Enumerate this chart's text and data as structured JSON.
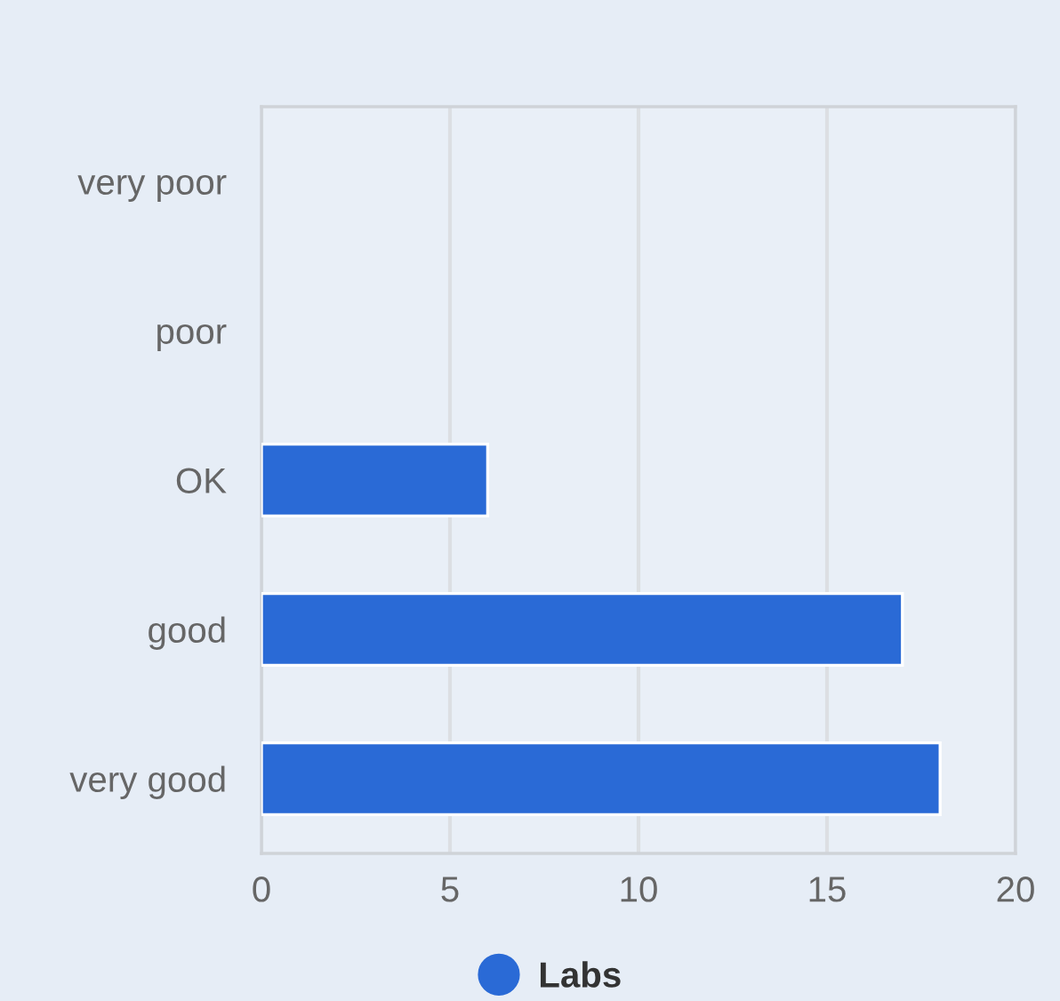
{
  "chart_data": {
    "type": "bar",
    "orientation": "horizontal",
    "categories": [
      "very poor",
      "poor",
      "OK",
      "good",
      "very good"
    ],
    "series": [
      {
        "name": "Labs",
        "color": "#2a6ad6",
        "values": [
          0,
          0,
          6,
          17,
          18
        ]
      }
    ],
    "xlim": [
      0,
      20
    ],
    "xticks": [
      0,
      5,
      10,
      15,
      20
    ],
    "grid": "x",
    "legend": "bottom"
  }
}
